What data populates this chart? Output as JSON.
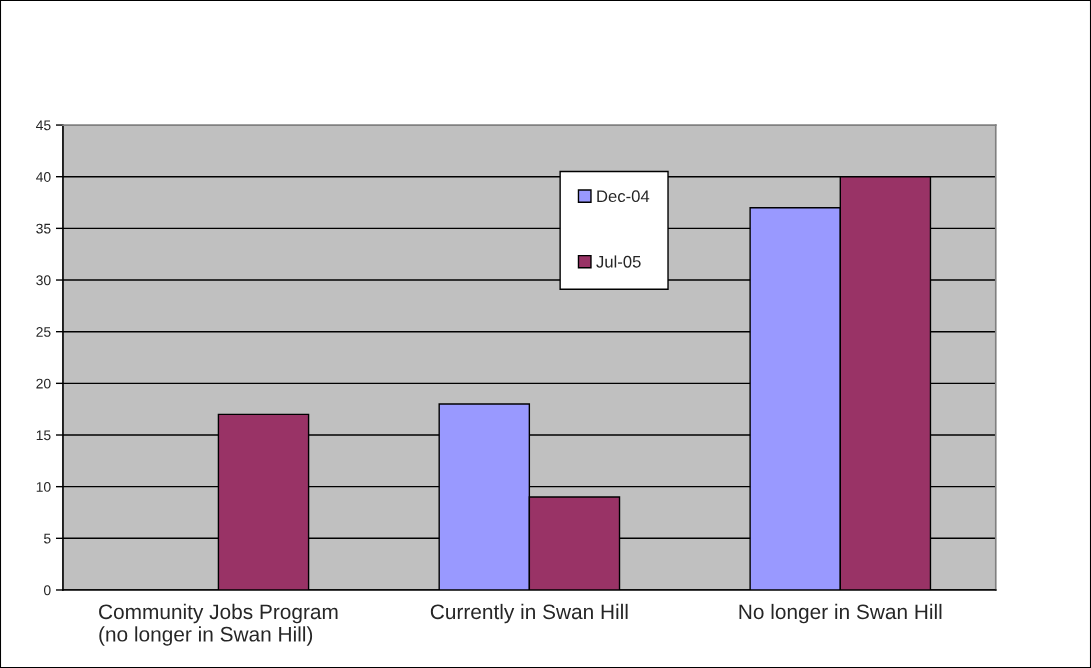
{
  "chart_data": {
    "type": "bar",
    "categories": [
      "Community Jobs Program\n(no longer in Swan Hill)",
      "Currently in Swan Hill",
      "No longer in Swan Hill"
    ],
    "series": [
      {
        "name": "Dec-04",
        "color": "#9999ff",
        "values": [
          null,
          18,
          37
        ]
      },
      {
        "name": "Jul-05",
        "color": "#993366",
        "values": [
          17,
          9,
          40
        ]
      }
    ],
    "ylim": [
      0,
      45
    ],
    "yticks": [
      0,
      5,
      10,
      15,
      20,
      25,
      30,
      35,
      40,
      45
    ],
    "grid": "y",
    "legend": "top"
  }
}
